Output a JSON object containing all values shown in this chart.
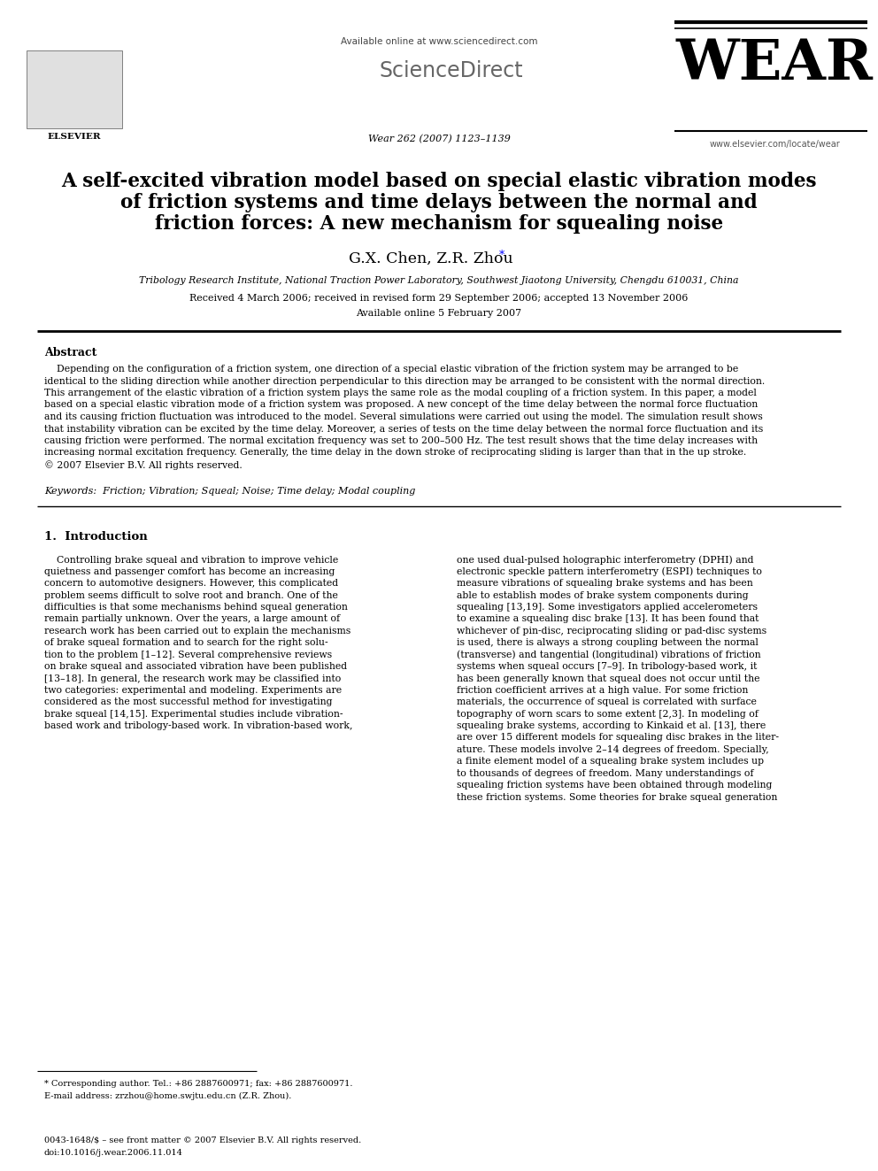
{
  "bg_color": "#ffffff",
  "header": {
    "elsevier_text": "ELSEVIER",
    "available_online": "Available online at www.sciencedirect.com",
    "sciencedirect": "ScienceDirect",
    "journal_name": "WEAR",
    "journal_ref": "Wear 262 (2007) 1123–1139",
    "journal_url": "www.elsevier.com/locate/wear"
  },
  "title_line1": "A self-excited vibration model based on special elastic vibration modes",
  "title_line2": "of friction systems and time delays between the normal and",
  "title_line3": "friction forces: A new mechanism for squealing noise",
  "authors": "G.X. Chen, Z.R. Zhou",
  "author_star": "*",
  "affiliation": "Tribology Research Institute, National Traction Power Laboratory, Southwest Jiaotong University, Chengdu 610031, China",
  "dates": "Received 4 March 2006; received in revised form 29 September 2006; accepted 13 November 2006",
  "available": "Available online 5 February 2007",
  "abstract_title": "Abstract",
  "abstract_lines": [
    "    Depending on the configuration of a friction system, one direction of a special elastic vibration of the friction system may be arranged to be",
    "identical to the sliding direction while another direction perpendicular to this direction may be arranged to be consistent with the normal direction.",
    "This arrangement of the elastic vibration of a friction system plays the same role as the modal coupling of a friction system. In this paper, a model",
    "based on a special elastic vibration mode of a friction system was proposed. A new concept of the time delay between the normal force fluctuation",
    "and its causing friction fluctuation was introduced to the model. Several simulations were carried out using the model. The simulation result shows",
    "that instability vibration can be excited by the time delay. Moreover, a series of tests on the time delay between the normal force fluctuation and its",
    "causing friction were performed. The normal excitation frequency was set to 200–500 Hz. The test result shows that the time delay increases with",
    "increasing normal excitation frequency. Generally, the time delay in the down stroke of reciprocating sliding is larger than that in the up stroke.",
    "© 2007 Elsevier B.V. All rights reserved."
  ],
  "keywords": "Keywords:  Friction; Vibration; Squeal; Noise; Time delay; Modal coupling",
  "section1_title": "1.  Introduction",
  "intro_left_lines": [
    "    Controlling brake squeal and vibration to improve vehicle",
    "quietness and passenger comfort has become an increasing",
    "concern to automotive designers. However, this complicated",
    "problem seems difficult to solve root and branch. One of the",
    "difficulties is that some mechanisms behind squeal generation",
    "remain partially unknown. Over the years, a large amount of",
    "research work has been carried out to explain the mechanisms",
    "of brake squeal formation and to search for the right solu-",
    "tion to the problem [1–12]. Several comprehensive reviews",
    "on brake squeal and associated vibration have been published",
    "[13–18]. In general, the research work may be classified into",
    "two categories: experimental and modeling. Experiments are",
    "considered as the most successful method for investigating",
    "brake squeal [14,15]. Experimental studies include vibration-",
    "based work and tribology-based work. In vibration-based work,"
  ],
  "intro_right_lines": [
    "one used dual-pulsed holographic interferometry (DPHI) and",
    "electronic speckle pattern interferometry (ESPI) techniques to",
    "measure vibrations of squealing brake systems and has been",
    "able to establish modes of brake system components during",
    "squealing [13,19]. Some investigators applied accelerometers",
    "to examine a squealing disc brake [13]. It has been found that",
    "whichever of pin-disc, reciprocating sliding or pad-disc systems",
    "is used, there is always a strong coupling between the normal",
    "(transverse) and tangential (longitudinal) vibrations of friction",
    "systems when squeal occurs [7–9]. In tribology-based work, it",
    "has been generally known that squeal does not occur until the",
    "friction coefficient arrives at a high value. For some friction",
    "materials, the occurrence of squeal is correlated with surface",
    "topography of worn scars to some extent [2,3]. In modeling of",
    "squealing brake systems, according to Kinkaid et al. [13], there",
    "are over 15 different models for squealing disc brakes in the liter-",
    "ature. These models involve 2–14 degrees of freedom. Specially,",
    "a finite element model of a squealing brake system includes up",
    "to thousands of degrees of freedom. Many understandings of",
    "squealing friction systems have been obtained through modeling",
    "these friction systems. Some theories for brake squeal generation"
  ],
  "footnote_line": "* Corresponding author. Tel.: +86 2887600971; fax: +86 2887600971.",
  "footnote_email": "E-mail address: zrzhou@home.swjtu.edu.cn (Z.R. Zhou).",
  "footer_issn": "0043-1648/$ – see front matter © 2007 Elsevier B.V. All rights reserved.",
  "footer_doi": "doi:10.1016/j.wear.2006.11.014"
}
